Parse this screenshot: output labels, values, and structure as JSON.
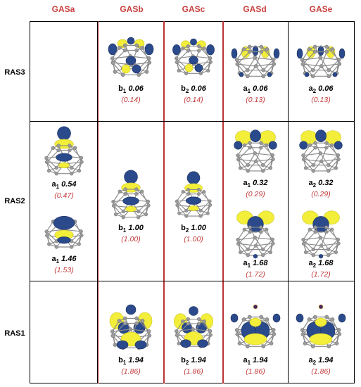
{
  "columns": [
    "GASa",
    "GASb",
    "GASc",
    "GASd",
    "GASe"
  ],
  "rows": [
    "RAS3",
    "RAS2",
    "RAS1"
  ],
  "entries": {
    "ras3_b": {
      "sym": "b",
      "sub": "1",
      "occ": "0.06",
      "paren": "(0.14)"
    },
    "ras3_c": {
      "sym": "b",
      "sub": "2",
      "occ": "0.06",
      "paren": "(0.14)"
    },
    "ras3_d": {
      "sym": "a",
      "sub": "1",
      "occ": "0.06",
      "paren": "(0.13)"
    },
    "ras3_e": {
      "sym": "a",
      "sub": "2",
      "occ": "0.06",
      "paren": "(0.13)"
    },
    "ras2_a1": {
      "sym": "a",
      "sub": "1",
      "occ": "0.54",
      "paren": "(0.47)"
    },
    "ras2_a2": {
      "sym": "a",
      "sub": "1",
      "occ": "1.46",
      "paren": "(1.53)"
    },
    "ras2_b": {
      "sym": "b",
      "sub": "1",
      "occ": "1.00",
      "paren": "(1.00)"
    },
    "ras2_c": {
      "sym": "b",
      "sub": "2",
      "occ": "1.00",
      "paren": "(1.00)"
    },
    "ras2_d1": {
      "sym": "a",
      "sub": "1",
      "occ": "0.32",
      "paren": "(0.29)"
    },
    "ras2_d2": {
      "sym": "a",
      "sub": "1",
      "occ": "1.68",
      "paren": "(1.72)"
    },
    "ras2_e1": {
      "sym": "a",
      "sub": "2",
      "occ": "0.32",
      "paren": "(0.29)"
    },
    "ras2_e2": {
      "sym": "a",
      "sub": "2",
      "occ": "1.68",
      "paren": "(1.72)"
    },
    "ras1_b": {
      "sym": "b",
      "sub": "1",
      "occ": "1.94",
      "paren": "(1.86)"
    },
    "ras1_c": {
      "sym": "b",
      "sub": "2",
      "occ": "1.94",
      "paren": "(1.86)"
    },
    "ras1_d": {
      "sym": "a",
      "sub": "1",
      "occ": "1.94",
      "paren": "(1.86)"
    },
    "ras1_e": {
      "sym": "a",
      "sub": "2",
      "occ": "1.94",
      "paren": "(1.86)"
    }
  },
  "colors": {
    "header": "#c8413f",
    "italic_value": "#c23b3b",
    "lobe_blue": "#2a4a8c",
    "lobe_yellow": "#f2ee3a",
    "atom": "#9a9a9a"
  },
  "icons": [
    "orbital-isosurface-image"
  ]
}
